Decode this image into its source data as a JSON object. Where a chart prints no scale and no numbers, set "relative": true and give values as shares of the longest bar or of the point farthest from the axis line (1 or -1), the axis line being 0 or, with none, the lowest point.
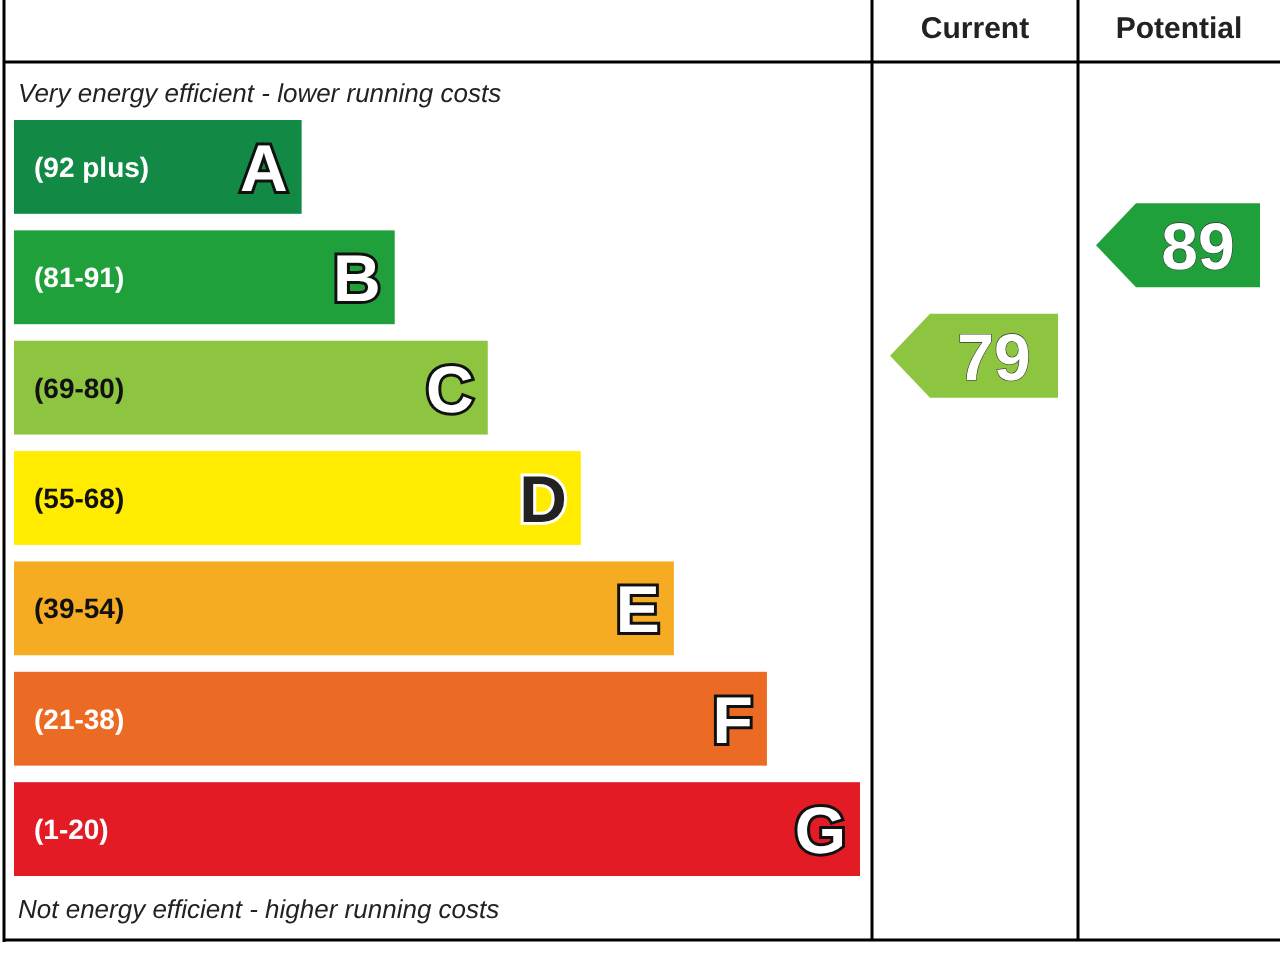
{
  "chart_data": {
    "type": "bar",
    "orientation": "horizontal",
    "relative": true,
    "categories": [
      "(92 plus)",
      "(81-91)",
      "(69-80)",
      "(55-68)",
      "(39-54)",
      "(21-38)",
      "(1-20)"
    ],
    "values": [
      0.34,
      0.45,
      0.56,
      0.67,
      0.78,
      0.89,
      1
    ],
    "colors": [
      "#128a46",
      "#20a03a",
      "#8dc540",
      "#ffec00",
      "#f5ab22",
      "#eb6b25",
      "#e21b25"
    ],
    "annotations": [
      "Very energy efficient - lower running costs",
      "Not energy efficient - higher running costs",
      "Current",
      "Potential",
      {
        "text": "A",
        "x": 0.34,
        "y": "(92 plus)"
      },
      {
        "text": "B",
        "x": 0.45,
        "y": "(81-91)"
      },
      {
        "text": "C",
        "x": 0.56,
        "y": "(69-80)"
      },
      {
        "text": "D",
        "x": 0.67,
        "y": "(55-68)"
      },
      {
        "text": "E",
        "x": 0.78,
        "y": "(39-54)"
      },
      {
        "text": "F",
        "x": 0.89,
        "y": "(21-38)"
      },
      {
        "text": "G",
        "x": 1,
        "y": "(1-20)"
      },
      "79",
      "89"
    ]
  }
}
